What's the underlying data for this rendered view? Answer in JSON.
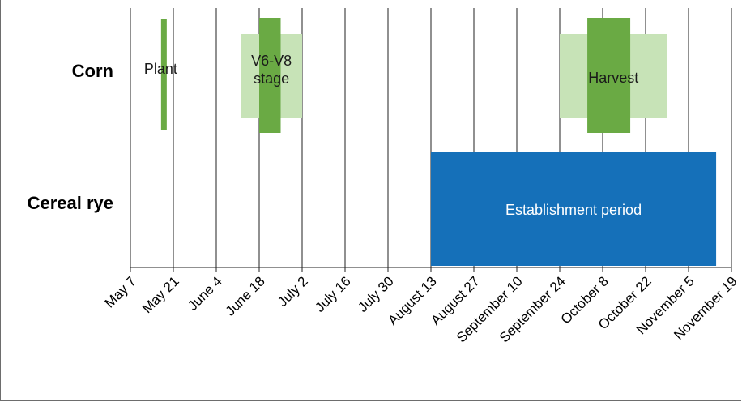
{
  "chart_data": {
    "type": "gantt",
    "rows": [
      "Corn",
      "Cereal rye"
    ],
    "x_ticks": [
      "May 7",
      "May 21",
      "June 4",
      "June 18",
      "July 2",
      "July 16",
      "July 30",
      "August 13",
      "August 27",
      "September 10",
      "September 24",
      "October 8",
      "October 22",
      "November 5",
      "November 19"
    ],
    "x_range": [
      "May 7",
      "November 19"
    ],
    "grid": "vertical",
    "bars": [
      {
        "row": "Corn",
        "label": "Plant",
        "start": "May 17",
        "end": "May 19",
        "shade": "dark"
      },
      {
        "row": "Corn",
        "label": "",
        "start": "June 12",
        "end": "July 2",
        "shade": "light"
      },
      {
        "row": "Corn",
        "label": "",
        "start": "June 18",
        "end": "June 25",
        "shade": "dark"
      },
      {
        "row": "Corn",
        "label": "V6-V8 stage",
        "start": "June 12",
        "end": "July 2",
        "shade": "text"
      },
      {
        "row": "Corn",
        "label": "",
        "start": "September 24",
        "end": "October 29",
        "shade": "light"
      },
      {
        "row": "Corn",
        "label": "",
        "start": "October 3",
        "end": "October 17",
        "shade": "dark"
      },
      {
        "row": "Cereal rye",
        "label": "Establishment period",
        "start": "August 13",
        "end": "November 14",
        "shade": "blue"
      }
    ],
    "colors": {
      "dark": "#6aaa44",
      "light": "#c7e3b7",
      "blue": "#1570b9",
      "grid": "#222222"
    }
  }
}
